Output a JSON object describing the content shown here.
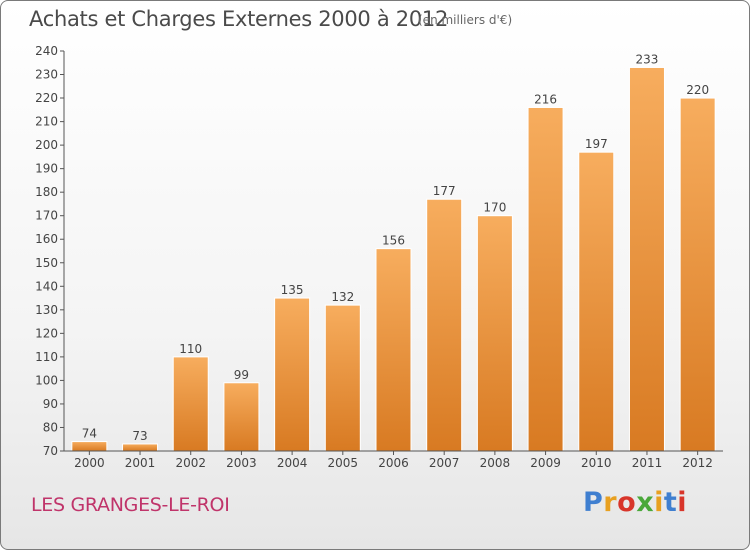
{
  "header": {
    "title": "Achats et Charges Externes 2000 à 2012",
    "subtitle": "(en milliers d'€)"
  },
  "footer": {
    "town": "LES GRANGES-LE-ROI",
    "logo_letters": [
      "P",
      "r",
      "o",
      "x",
      "i",
      "t",
      "i"
    ],
    "logo_colors": [
      "#3f7fd0",
      "#e8a020",
      "#d8352a",
      "#4aa83a",
      "#e8a020",
      "#3f7fd0",
      "#d8352a"
    ]
  },
  "colors": {
    "bar_top": "#f7ad5e",
    "bar_bottom": "#d87a22",
    "bar_edge": "#ffffff",
    "axis": "#555555"
  },
  "chart_data": {
    "type": "bar",
    "categories": [
      "2000",
      "2001",
      "2002",
      "2003",
      "2004",
      "2005",
      "2006",
      "2007",
      "2008",
      "2009",
      "2010",
      "2011",
      "2012"
    ],
    "values": [
      74,
      73,
      110,
      99,
      135,
      132,
      156,
      177,
      170,
      216,
      197,
      233,
      220
    ],
    "data_labels": [
      "74",
      "73",
      "110",
      "99",
      "135",
      "132",
      "156",
      "177",
      "170",
      "216",
      "197",
      "233",
      "220"
    ],
    "title": "Achats et Charges Externes 2000 à 2012",
    "subtitle": "(en milliers d'€)",
    "xlabel": "",
    "ylabel": "",
    "ylim": [
      70,
      240
    ],
    "yticks": [
      70,
      80,
      90,
      100,
      110,
      120,
      130,
      140,
      150,
      160,
      170,
      180,
      190,
      200,
      210,
      220,
      230,
      240
    ],
    "grid": false
  }
}
